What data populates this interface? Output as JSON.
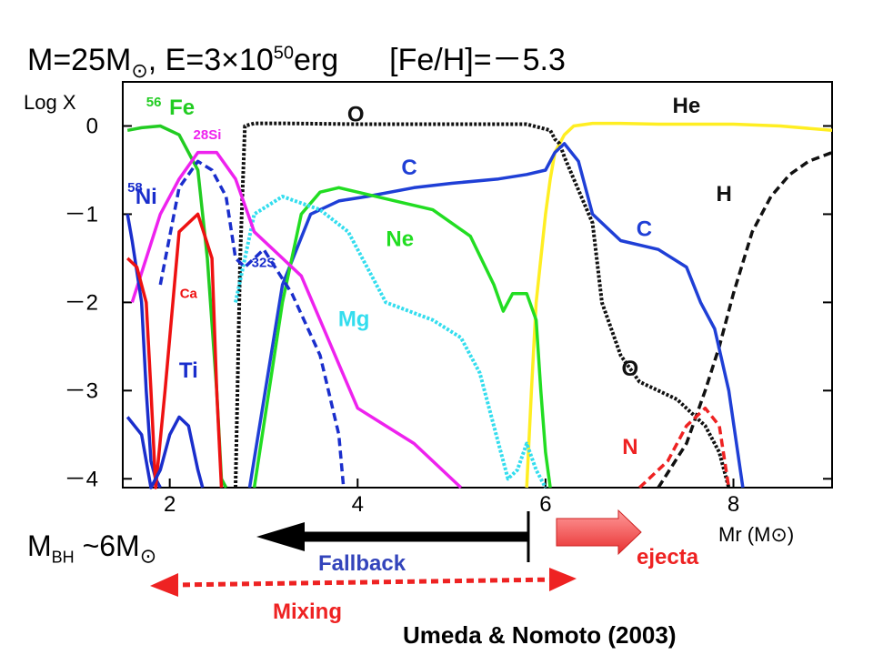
{
  "title": {
    "mass": "M=25M",
    "sun": "⊙",
    "energy_prefix": ", E=3×10",
    "energy_exp": "50",
    "energy_unit": "erg",
    "metallicity": "[Fe/H]=－5.3"
  },
  "annotations": {
    "mbh_main": "M",
    "mbh_sub": "BH",
    "mbh_rest": " ~6M",
    "sun": "⊙",
    "fallback": "Fallback",
    "ejecta": "ejecta",
    "mixing": "Mixing",
    "credit": "Umeda & Nomoto (2003)"
  },
  "colors": {
    "Fe": "#22cc22",
    "Si": "#ee22ee",
    "Ni": "#1a2ecc",
    "S": "#1a2ecc",
    "Ca": "#ee1111",
    "Ti": "#1a2ecc",
    "O": "#111111",
    "C": "#1f3fd6",
    "Ne": "#22dd22",
    "Mg": "#33ddee",
    "He": "#ffee22",
    "H": "#111111",
    "N": "#ee2222",
    "fallback": "#3344bb",
    "ejecta": "#ee2222",
    "mixing": "#ee2222"
  },
  "chart_data": {
    "type": "line",
    "xlabel": "Mr (M⊙)",
    "ylabel": "Log X",
    "xlim": [
      1.5,
      9.05
    ],
    "ylim": [
      -4.1,
      0.5
    ],
    "xticks": [
      "2",
      "4",
      "6",
      "8"
    ],
    "xtick_values": [
      2,
      4,
      6,
      8
    ],
    "yticks": [
      "0",
      "－1",
      "－2",
      "－3",
      "－4"
    ],
    "ytick_values": [
      0,
      -1,
      -2,
      -3,
      -4
    ],
    "series": [
      {
        "name": "He",
        "color": "#ffee22",
        "dash": "solid",
        "x": [
          5.8,
          5.85,
          5.9,
          6.0,
          6.05,
          6.1,
          6.2,
          6.3,
          6.5,
          6.8,
          7.2,
          7.6,
          8.0,
          8.5,
          9.05
        ],
        "y": [
          -4.1,
          -3.0,
          -2.0,
          -1.0,
          -0.6,
          -0.3,
          -0.1,
          0.0,
          0.03,
          0.03,
          0.02,
          0.02,
          0.02,
          0.0,
          -0.05
        ]
      },
      {
        "name": "H",
        "color": "#111111",
        "dash": "dash",
        "x": [
          7.2,
          7.5,
          7.7,
          7.85,
          8.0,
          8.2,
          8.4,
          8.6,
          8.8,
          9.05
        ],
        "y": [
          -4.1,
          -3.6,
          -3.0,
          -2.5,
          -1.9,
          -1.2,
          -0.8,
          -0.55,
          -0.4,
          -0.3
        ]
      },
      {
        "name": "O",
        "color": "#111111",
        "dash": "dot",
        "x": [
          2.7,
          2.75,
          2.8,
          2.9,
          3.2,
          4.0,
          5.0,
          5.8,
          6.05,
          6.1,
          6.15,
          6.2,
          6.3,
          6.5,
          6.6,
          6.8,
          7.0,
          7.4,
          7.7,
          7.85,
          7.95
        ],
        "y": [
          -4.1,
          -1.5,
          0.0,
          0.03,
          0.03,
          0.02,
          0.02,
          0.02,
          -0.05,
          -0.15,
          -0.2,
          -0.35,
          -0.6,
          -1.1,
          -2.0,
          -2.6,
          -2.9,
          -3.1,
          -3.4,
          -3.7,
          -4.1
        ]
      },
      {
        "name": "C",
        "color": "#1f3fd6",
        "dash": "solid",
        "x": [
          2.85,
          3.2,
          3.5,
          3.8,
          4.1,
          4.6,
          5.0,
          5.5,
          5.8,
          6.0,
          6.1,
          6.2,
          6.35,
          6.5,
          6.8,
          7.2,
          7.5,
          7.65,
          7.8,
          7.95,
          8.1
        ],
        "y": [
          -4.1,
          -1.8,
          -1.0,
          -0.85,
          -0.8,
          -0.7,
          -0.65,
          -0.6,
          -0.55,
          -0.5,
          -0.3,
          -0.2,
          -0.4,
          -1.0,
          -1.3,
          -1.4,
          -1.6,
          -2.0,
          -2.3,
          -3.0,
          -4.1
        ]
      },
      {
        "name": "Ne",
        "color": "#22dd22",
        "dash": "solid",
        "x": [
          2.9,
          3.2,
          3.4,
          3.6,
          3.8,
          4.0,
          4.4,
          4.8,
          5.2,
          5.45,
          5.55,
          5.65,
          5.8,
          5.9,
          5.95,
          6.0,
          6.05
        ],
        "y": [
          -4.1,
          -2.0,
          -1.0,
          -0.75,
          -0.7,
          -0.75,
          -0.85,
          -0.95,
          -1.25,
          -1.8,
          -2.1,
          -1.9,
          -1.9,
          -2.2,
          -3.0,
          -3.7,
          -4.1
        ]
      },
      {
        "name": "Mg",
        "color": "#33ddee",
        "dash": "dot",
        "x": [
          2.7,
          2.9,
          3.2,
          3.6,
          3.9,
          4.3,
          4.8,
          5.1,
          5.3,
          5.5,
          5.6,
          5.7,
          5.8,
          5.9,
          6.0
        ],
        "y": [
          -2.0,
          -1.0,
          -0.8,
          -0.95,
          -1.2,
          -2.0,
          -2.2,
          -2.4,
          -2.8,
          -3.6,
          -4.0,
          -3.9,
          -3.6,
          -3.9,
          -4.1
        ]
      },
      {
        "name": "Fe",
        "color": "#22cc22",
        "dash": "solid",
        "x": [
          1.55,
          1.7,
          1.9,
          2.1,
          2.3,
          2.4,
          2.5,
          2.55,
          2.6
        ],
        "y": [
          -0.05,
          -0.02,
          0.0,
          -0.1,
          -0.5,
          -1.5,
          -3.0,
          -4.0,
          -4.1
        ]
      },
      {
        "name": "Si",
        "color": "#ee22ee",
        "dash": "solid",
        "x": [
          1.6,
          1.9,
          2.1,
          2.3,
          2.5,
          2.7,
          2.9,
          3.2,
          3.4,
          3.6,
          3.8,
          4.0,
          4.3,
          4.6,
          4.9,
          5.1
        ],
        "y": [
          -2.0,
          -1.0,
          -0.6,
          -0.3,
          -0.3,
          -0.6,
          -1.2,
          -1.5,
          -1.7,
          -2.2,
          -2.7,
          -3.2,
          -3.4,
          -3.6,
          -3.9,
          -4.1
        ]
      },
      {
        "name": "Ni",
        "color": "#1a2ecc",
        "dash": "solid",
        "x": [
          1.55,
          1.6,
          1.7,
          1.75,
          1.8,
          1.85,
          1.9
        ],
        "y": [
          -1.0,
          -1.3,
          -2.0,
          -3.0,
          -3.8,
          -4.0,
          -4.1
        ]
      },
      {
        "name": "S",
        "color": "#1a2ecc",
        "dash": "dash",
        "x": [
          1.9,
          2.1,
          2.3,
          2.45,
          2.6,
          2.7,
          2.8,
          3.0,
          3.3,
          3.6,
          3.8,
          3.85
        ],
        "y": [
          -1.8,
          -0.7,
          -0.4,
          -0.5,
          -0.8,
          -1.5,
          -1.6,
          -1.4,
          -1.9,
          -2.6,
          -3.5,
          -4.1
        ]
      },
      {
        "name": "Ca",
        "color": "#ee1111",
        "dash": "solid",
        "x": [
          1.55,
          1.65,
          1.75,
          1.8,
          1.85,
          1.95,
          2.1,
          2.3,
          2.45,
          2.5,
          2.55
        ],
        "y": [
          -1.5,
          -1.6,
          -2.0,
          -3.0,
          -4.1,
          -3.0,
          -1.2,
          -1.0,
          -1.5,
          -3.0,
          -4.1
        ]
      },
      {
        "name": "Ti",
        "color": "#1a2ecc",
        "dash": "solid",
        "x": [
          1.55,
          1.7,
          1.8,
          1.9,
          2.0,
          2.1,
          2.2,
          2.3,
          2.35
        ],
        "y": [
          -3.3,
          -3.5,
          -4.1,
          -3.9,
          -3.5,
          -3.3,
          -3.4,
          -3.9,
          -4.1
        ]
      },
      {
        "name": "N",
        "color": "#ee2222",
        "dash": "dash",
        "x": [
          7.0,
          7.3,
          7.5,
          7.7,
          7.85,
          7.95
        ],
        "y": [
          -4.1,
          -3.8,
          -3.4,
          -3.2,
          -3.4,
          -4.1
        ]
      }
    ],
    "labels": [
      {
        "text": "56",
        "sup": true,
        "x": 1.83,
        "y": 0.22,
        "color": "#22cc22"
      },
      {
        "text": "Fe",
        "x": 2.13,
        "y": 0.13,
        "color": "#22cc22"
      },
      {
        "text": "O",
        "x": 3.98,
        "y": 0.05,
        "color": "#111111"
      },
      {
        "text": "He",
        "x": 7.5,
        "y": 0.15,
        "color": "#111111"
      },
      {
        "text": "28Si",
        "x": 2.4,
        "y": -0.15,
        "color": "#ee22ee",
        "small": true
      },
      {
        "text": "C",
        "x": 4.55,
        "y": -0.55,
        "color": "#1f3fd6"
      },
      {
        "text": "58",
        "sup": true,
        "x": 1.63,
        "y": -0.75,
        "color": "#1a2ecc"
      },
      {
        "text": "Ni",
        "x": 1.75,
        "y": -0.88,
        "color": "#1a2ecc"
      },
      {
        "text": "H",
        "x": 7.9,
        "y": -0.85,
        "color": "#111111"
      },
      {
        "text": "Ne",
        "x": 4.45,
        "y": -1.36,
        "color": "#22dd22"
      },
      {
        "text": "C",
        "x": 7.05,
        "y": -1.25,
        "color": "#1f3fd6"
      },
      {
        "text": "32S",
        "x": 3.0,
        "y": -1.6,
        "color": "#1a2ecc",
        "small": true
      },
      {
        "text": "Ca",
        "x": 2.2,
        "y": -1.95,
        "color": "#ee1111",
        "small": true
      },
      {
        "text": "Mg",
        "x": 3.96,
        "y": -2.27,
        "color": "#33ddee"
      },
      {
        "text": "Ti",
        "x": 2.2,
        "y": -2.85,
        "color": "#1a2ecc"
      },
      {
        "text": "O",
        "x": 6.9,
        "y": -2.83,
        "color": "#111111"
      },
      {
        "text": "N",
        "x": 6.9,
        "y": -3.72,
        "color": "#ee2222"
      }
    ],
    "grid": false,
    "legend": "none"
  }
}
